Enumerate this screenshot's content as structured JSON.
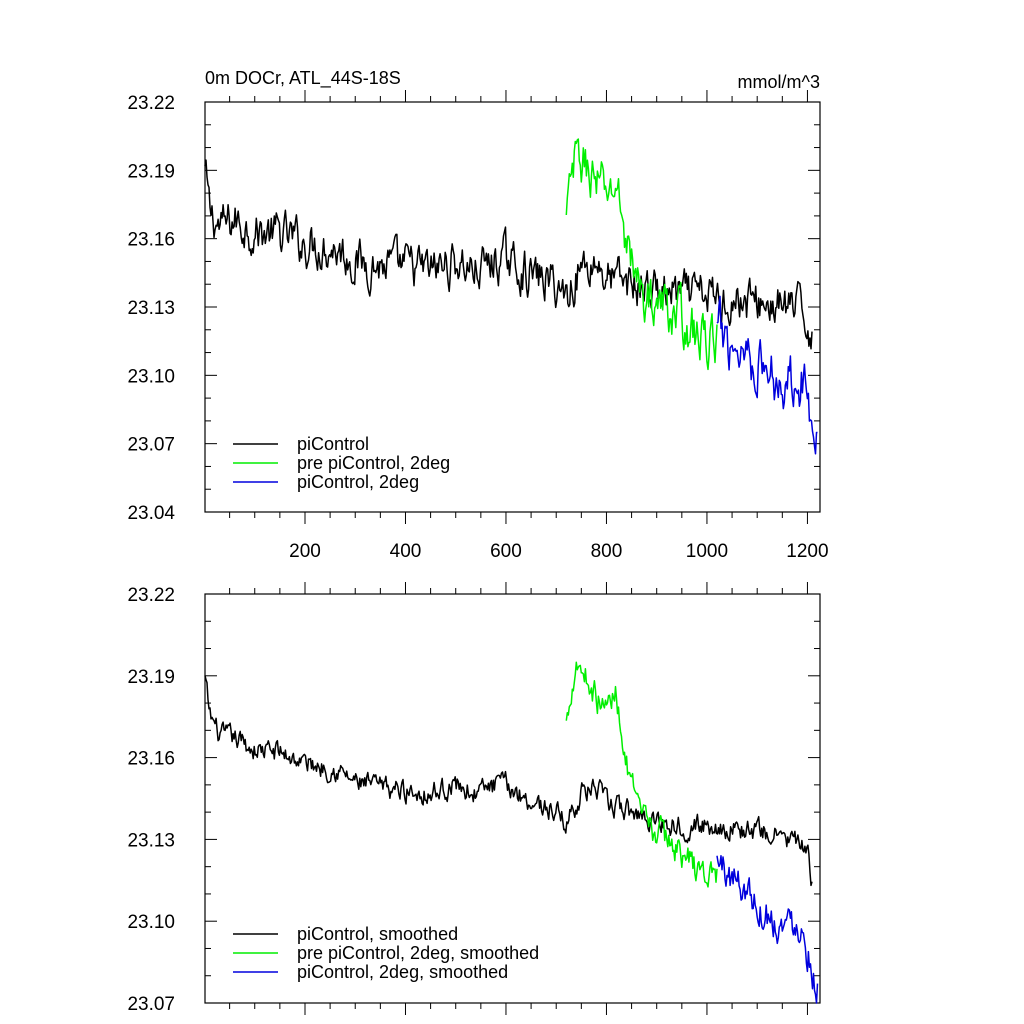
{
  "figure": {
    "title": "0m DOCr, ATL_44S-18S",
    "units": "mmol/m^3"
  },
  "colors": {
    "piControl": "#000000",
    "pre": "#00ee00",
    "twodeg": "#0000dd"
  },
  "chart_data": [
    {
      "type": "line",
      "title": "0m DOCr, ATL_44S-18S",
      "units_label": "mmol/m^3",
      "xlim": [
        1,
        1225
      ],
      "ylim": [
        23.04,
        23.22
      ],
      "xticks": [
        200,
        400,
        600,
        800,
        1000,
        1200
      ],
      "xtick_labels": [
        "200",
        "400",
        "600",
        "800",
        "1000",
        "1200"
      ],
      "yticks": [
        23.04,
        23.07,
        23.1,
        23.13,
        23.16,
        23.19,
        23.22
      ],
      "ytick_labels": [
        "23.04",
        "23.07",
        "23.10",
        "23.13",
        "23.16",
        "23.19",
        "23.22"
      ],
      "legend_position": "bottom-left",
      "series": [
        {
          "name": "piControl",
          "color": "#000000",
          "noise": 0.007,
          "x": [
            1,
            10,
            30,
            60,
            100,
            150,
            200,
            260,
            300,
            350,
            400,
            450,
            500,
            540,
            580,
            600,
            650,
            700,
            720,
            750,
            780,
            800,
            850,
            900,
            950,
            1000,
            1050,
            1100,
            1150,
            1180,
            1200,
            1210
          ],
          "y": [
            23.19,
            23.172,
            23.165,
            23.168,
            23.163,
            23.162,
            23.158,
            23.156,
            23.15,
            23.148,
            23.148,
            23.146,
            23.15,
            23.146,
            23.15,
            23.151,
            23.144,
            23.14,
            23.135,
            23.148,
            23.15,
            23.143,
            23.14,
            23.137,
            23.135,
            23.135,
            23.133,
            23.132,
            23.13,
            23.129,
            23.124,
            23.118
          ]
        },
        {
          "name": "pre piControl, 2deg",
          "color": "#00ee00",
          "noise": 0.008,
          "x": [
            720,
            730,
            740,
            760,
            780,
            800,
            820,
            840,
            860,
            880,
            900,
            940,
            980,
            1000,
            1020
          ],
          "y": [
            23.168,
            23.185,
            23.195,
            23.192,
            23.185,
            23.18,
            23.183,
            23.16,
            23.14,
            23.133,
            23.132,
            23.127,
            23.117,
            23.115,
            23.116
          ]
        },
        {
          "name": "piControl, 2deg",
          "color": "#0000dd",
          "noise": 0.009,
          "x": [
            1020,
            1050,
            1080,
            1100,
            1130,
            1160,
            1180,
            1200,
            1220
          ],
          "y": [
            23.12,
            23.114,
            23.112,
            23.105,
            23.1,
            23.098,
            23.103,
            23.09,
            23.078
          ]
        }
      ]
    },
    {
      "type": "line",
      "title": "",
      "xlim": [
        1,
        1225
      ],
      "ylim": [
        23.07,
        23.22
      ],
      "xticks": [
        200,
        400,
        600,
        800,
        1000,
        1200
      ],
      "xtick_labels": [],
      "yticks": [
        23.07,
        23.1,
        23.13,
        23.16,
        23.19,
        23.22
      ],
      "ytick_labels": [
        "23.07",
        "23.10",
        "23.13",
        "23.16",
        "23.19",
        "23.22"
      ],
      "legend_position": "bottom-left",
      "series": [
        {
          "name": "piControl, smoothed",
          "color": "#000000",
          "noise": 0.003,
          "x": [
            1,
            10,
            30,
            60,
            100,
            150,
            200,
            260,
            300,
            350,
            400,
            450,
            500,
            540,
            580,
            600,
            650,
            700,
            720,
            750,
            780,
            800,
            850,
            900,
            950,
            1000,
            1050,
            1100,
            1150,
            1180,
            1200,
            1210
          ],
          "y": [
            23.189,
            23.176,
            23.168,
            23.167,
            23.163,
            23.162,
            23.158,
            23.156,
            23.151,
            23.149,
            23.148,
            23.147,
            23.15,
            23.147,
            23.15,
            23.15,
            23.144,
            23.14,
            23.136,
            23.147,
            23.149,
            23.143,
            23.14,
            23.137,
            23.135,
            23.135,
            23.134,
            23.133,
            23.131,
            23.129,
            23.124,
            23.114
          ]
        },
        {
          "name": "pre piControl, 2deg, smoothed",
          "color": "#00ee00",
          "noise": 0.004,
          "x": [
            720,
            730,
            740,
            760,
            780,
            800,
            820,
            840,
            860,
            880,
            900,
            940,
            980,
            1000,
            1020
          ],
          "y": [
            23.172,
            23.186,
            23.196,
            23.19,
            23.182,
            23.178,
            23.184,
            23.158,
            23.141,
            23.135,
            23.133,
            23.127,
            23.119,
            23.117,
            23.118
          ]
        },
        {
          "name": "piControl, 2deg, smoothed",
          "color": "#0000dd",
          "noise": 0.005,
          "x": [
            1020,
            1050,
            1080,
            1100,
            1130,
            1160,
            1180,
            1200,
            1220
          ],
          "y": [
            23.122,
            23.116,
            23.112,
            23.106,
            23.101,
            23.098,
            23.102,
            23.09,
            23.076
          ]
        }
      ]
    }
  ]
}
